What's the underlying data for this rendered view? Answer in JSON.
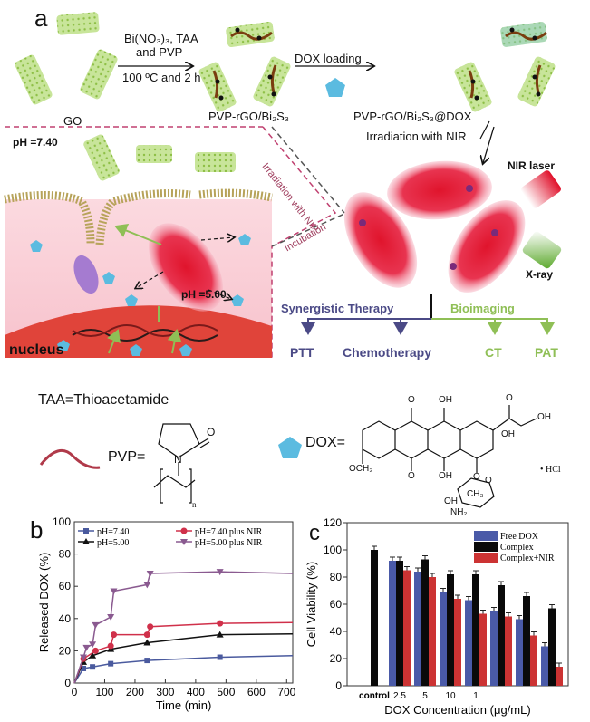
{
  "panel_a": {
    "label": "a",
    "go": "GO",
    "step1_reagents_line1": "Bi(NO₃)₃, TAA",
    "step1_reagents_line2": "and PVP",
    "step1_conditions": "100 ºC and 2 h",
    "intermediate": "PVP-rGO/Bi₂S₃",
    "step2": "DOX loading",
    "product": "PVP-rGO/Bi₂S₃@DOX",
    "ph_outside": "pH =7.40",
    "ph_inside": "pH =5.00",
    "nucleus": "nucleus",
    "irradiation_dashed": "Irradiation with NIR",
    "incubation": "Incubation",
    "irradiation_arrow": "Irradiation with NIR",
    "nir_laser": "NIR laser",
    "xray": "X-ray",
    "synergistic": "Synergistic Therapy",
    "bioimaging": "Bioimaging",
    "ptt": "PTT",
    "chemo": "Chemotherapy",
    "ct": "CT",
    "pat": "PAT",
    "colors": {
      "therapy": "#4b4a86",
      "imaging": "#8fbf56",
      "dox": "#5bbbe0",
      "cell": "#f6c6cf",
      "nucleus": "#e0443a"
    }
  },
  "legend_defs": {
    "taa": "TAA=Thioacetamide",
    "pvp": "PVP=",
    "dox": "DOX=",
    "pvp_atoms": {
      "o": "O",
      "n": "N",
      "sub": "n"
    },
    "dox_atoms": {
      "o1": "O",
      "oh1": "OH",
      "o2": "O",
      "oh2": "OH",
      "oh3": "OH",
      "och3": "OCH₃",
      "o3": "O",
      "oh4": "OH",
      "o4": "O",
      "o5": "O",
      "ch3": "CH₃",
      "oh5": "OH",
      "nh2": "NH₂",
      "hcl": "• HCl"
    }
  },
  "chart_data": [
    {
      "panel": "b",
      "type": "line",
      "xlabel": "Time (min)",
      "ylabel": "Released DOX (%)",
      "xlim": [
        0,
        720
      ],
      "ylim": [
        0,
        100
      ],
      "xticks": [
        0,
        100,
        200,
        300,
        400,
        500,
        600,
        700
      ],
      "yticks": [
        0,
        20,
        40,
        60,
        80,
        100
      ],
      "grid": false,
      "legend": "top",
      "series": [
        {
          "name": "pH=7.40",
          "color": "#4a5a9e",
          "marker": "square",
          "x": [
            0,
            30,
            60,
            120,
            240,
            480,
            720
          ],
          "y": [
            0,
            9,
            10,
            12,
            14,
            16,
            17
          ]
        },
        {
          "name": "pH=5.00",
          "color": "#111111",
          "marker": "triangle-up",
          "x": [
            0,
            30,
            60,
            120,
            240,
            480,
            720
          ],
          "y": [
            0,
            13,
            17,
            21,
            25,
            30,
            30.5
          ]
        },
        {
          "name": "pH=7.40 plus NIR",
          "color": "#d0304a",
          "marker": "circle",
          "x": [
            0,
            30,
            70,
            120,
            130,
            240,
            250,
            480,
            720
          ],
          "y": [
            0,
            15,
            20,
            23,
            30,
            30,
            35,
            37,
            37.5
          ]
        },
        {
          "name": "pH=5.00 plus NIR",
          "color": "#8a5a90",
          "marker": "triangle-down",
          "x": [
            0,
            30,
            40,
            60,
            70,
            120,
            130,
            240,
            250,
            480,
            720
          ],
          "y": [
            0,
            16,
            22,
            24,
            36,
            41,
            57,
            61,
            68,
            69,
            68
          ]
        }
      ]
    },
    {
      "panel": "c",
      "type": "bar",
      "xlabel": "DOX Concentration (μg/mL)",
      "ylabel": "Cell Viability (%)",
      "ylim": [
        0,
        120
      ],
      "yticks": [
        0,
        20,
        40,
        60,
        80,
        100,
        120
      ],
      "tick_labels": [
        "control",
        "2.5",
        "5",
        "10",
        "1",
        "",
        "",
        ""
      ],
      "legend": "top-right",
      "series": [
        {
          "name": "Free DOX",
          "color": "#4a5aa8",
          "values": [
            null,
            92,
            84,
            69,
            63,
            55,
            49,
            29
          ]
        },
        {
          "name": "Complex",
          "color": "#0a0a0a",
          "values": [
            100,
            92,
            93,
            82,
            82,
            74,
            66,
            57
          ]
        },
        {
          "name": "Complex+NIR",
          "color": "#cc3333",
          "values": [
            null,
            85,
            80,
            64,
            53,
            51,
            37,
            14
          ]
        }
      ]
    }
  ]
}
